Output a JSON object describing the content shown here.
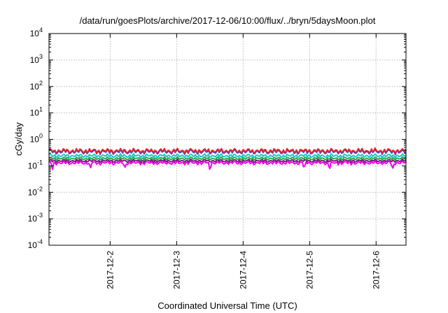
{
  "chart_data": {
    "type": "line",
    "title": "/data/run/goesPlots/archive/2017-12-06/10:00/flux/../bryn/5daysMoon.plot",
    "xlabel": "Coordinated Universal Time (UTC)",
    "ylabel": "cGy/day",
    "yscale": "log",
    "ylim": [
      0.0001,
      10000
    ],
    "xlim": [
      1.08,
      6.45
    ],
    "x_unit": "day of December 2017 (UTC)",
    "grid": true,
    "y_ticks": [
      {
        "value": 0.0001,
        "base": "10",
        "exp": "-4"
      },
      {
        "value": 0.001,
        "base": "10",
        "exp": "-3"
      },
      {
        "value": 0.01,
        "base": "10",
        "exp": "-2"
      },
      {
        "value": 0.1,
        "base": "10",
        "exp": "-1"
      },
      {
        "value": 1,
        "base": "10",
        "exp": "0"
      },
      {
        "value": 10,
        "base": "10",
        "exp": "1"
      },
      {
        "value": 100,
        "base": "10",
        "exp": "2"
      },
      {
        "value": 1000,
        "base": "10",
        "exp": "3"
      },
      {
        "value": 10000,
        "base": "10",
        "exp": "4"
      }
    ],
    "x_ticks": [
      {
        "value": 2,
        "label": "2017-12-2"
      },
      {
        "value": 3,
        "label": "2017-12-3"
      },
      {
        "value": 4,
        "label": "2017-12-4"
      },
      {
        "value": 5,
        "label": "2017-12-5"
      },
      {
        "value": 6,
        "label": "2017-12-6"
      }
    ],
    "series": [
      {
        "color": "#e8202a",
        "level": 0.37,
        "amp": 0.09,
        "dips": []
      },
      {
        "color": "#2a4fe0",
        "level": 0.34,
        "amp": 0.09,
        "dips": []
      },
      {
        "color": "#19c7c0",
        "level": 0.24,
        "amp": 0.07,
        "dips": []
      },
      {
        "color": "#2aa848",
        "level": 0.19,
        "amp": 0.06,
        "dips": []
      },
      {
        "color": "#7b1a7b",
        "level": 0.155,
        "amp": 0.06,
        "dips": []
      },
      {
        "color": "#f200f2",
        "level": 0.13,
        "amp": 0.07,
        "dips": [
          1.13,
          1.7,
          2.22,
          3.5,
          4.92,
          5.3,
          6.25
        ]
      }
    ]
  }
}
